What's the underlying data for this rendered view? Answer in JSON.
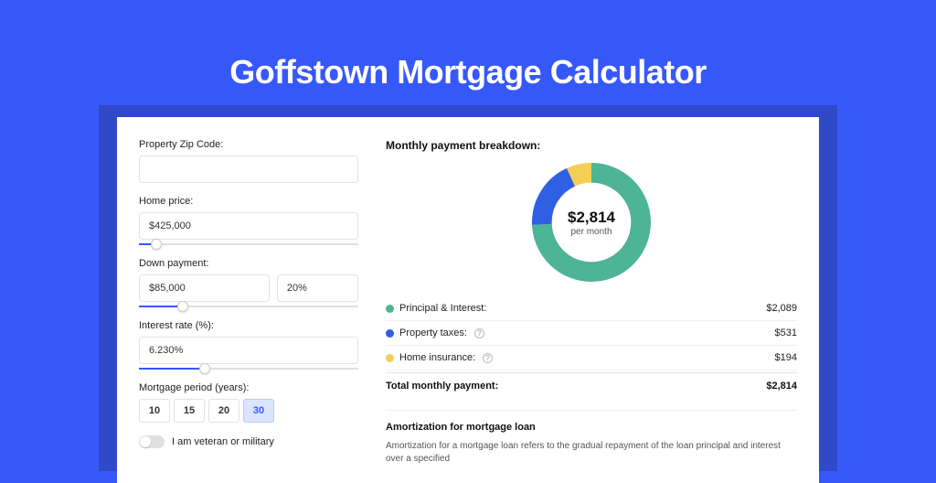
{
  "page": {
    "title": "Goffstown Mortgage Calculator",
    "background_color": "#3758f9",
    "shadow_color": "#2f49c9",
    "card_bg": "#ffffff"
  },
  "form": {
    "zip": {
      "label": "Property Zip Code:",
      "value": ""
    },
    "home_price": {
      "label": "Home price:",
      "value": "$425,000",
      "slider_percent": 8
    },
    "down_payment": {
      "label": "Down payment:",
      "amount": "$85,000",
      "percent": "20%",
      "slider_percent": 20
    },
    "interest_rate": {
      "label": "Interest rate (%):",
      "value": "6.230%",
      "slider_percent": 30
    },
    "mortgage_period": {
      "label": "Mortgage period (years):",
      "options": [
        "10",
        "15",
        "20",
        "30"
      ],
      "active": "30"
    },
    "veteran": {
      "label": "I am veteran or military",
      "on": false
    }
  },
  "breakdown": {
    "title": "Monthly payment breakdown:",
    "donut": {
      "type": "donut",
      "amount": "$2,814",
      "sub": "per month",
      "slices": [
        {
          "name": "Principal & Interest",
          "value": 2089,
          "color": "#4db495",
          "percent": 74.2
        },
        {
          "name": "Property taxes",
          "value": 531,
          "color": "#2f5fe3",
          "percent": 18.9
        },
        {
          "name": "Home insurance",
          "value": 194,
          "color": "#f3cf55",
          "percent": 6.9
        }
      ],
      "inner_radius": 40,
      "outer_radius": 60,
      "background": "#ffffff"
    },
    "legend": [
      {
        "label": "Principal & Interest:",
        "value": "$2,089",
        "color": "#4db495",
        "info": false
      },
      {
        "label": "Property taxes:",
        "value": "$531",
        "color": "#2f5fe3",
        "info": true
      },
      {
        "label": "Home insurance:",
        "value": "$194",
        "color": "#f3cf55",
        "info": true
      }
    ],
    "total": {
      "label": "Total monthly payment:",
      "value": "$2,814"
    }
  },
  "amortization": {
    "title": "Amortization for mortgage loan",
    "text": "Amortization for a mortgage loan refers to the gradual repayment of the loan principal and interest over a specified"
  }
}
